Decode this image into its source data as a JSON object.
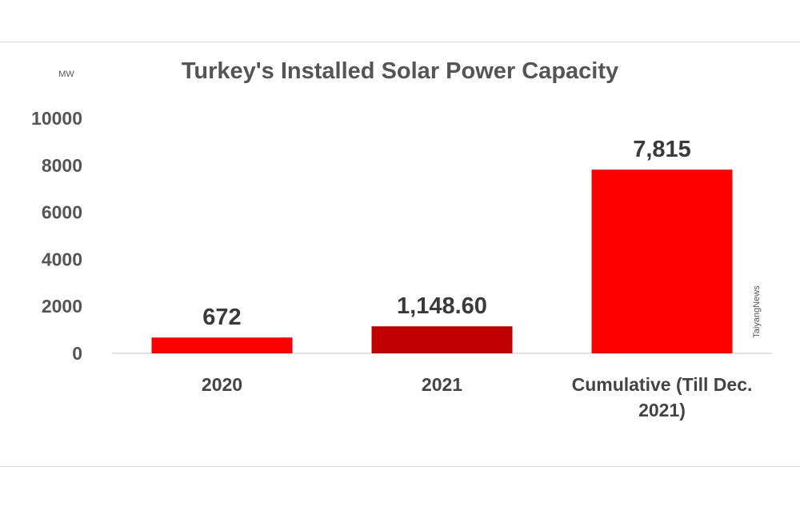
{
  "chart_data": {
    "type": "bar",
    "title": "Turkey's Installed Solar Power Capacity",
    "ylabel": "MW",
    "categories": [
      [
        "2020"
      ],
      [
        "2021"
      ],
      [
        "Cumulative (Till Dec.",
        "2021)"
      ]
    ],
    "values": [
      672,
      1148.6,
      7815
    ],
    "data_labels": [
      "672",
      "1,148.60",
      "7,815"
    ],
    "bar_colors": [
      "#ff0000",
      "#c00000",
      "#ff0000"
    ],
    "ylim": [
      0,
      10000
    ],
    "yticks": [
      0,
      2000,
      4000,
      6000,
      8000,
      10000
    ],
    "grid": false,
    "legend": "none"
  },
  "watermark": "TaiyangNews"
}
